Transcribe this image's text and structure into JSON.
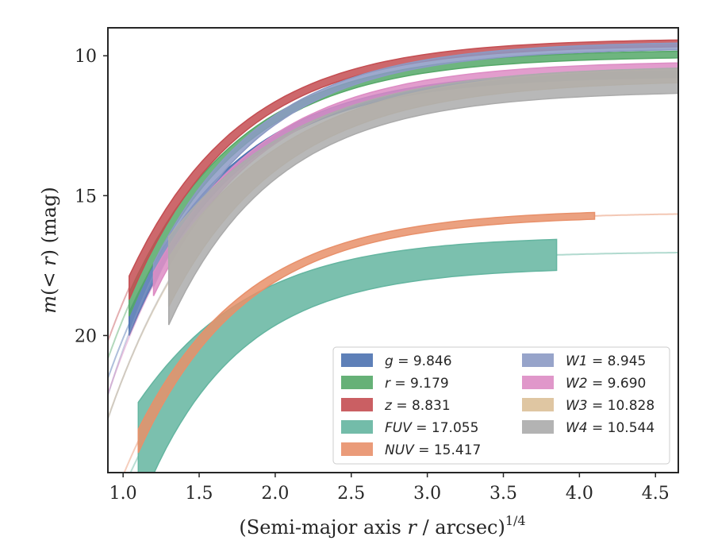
{
  "chart_data": {
    "type": "line",
    "title": "",
    "xlabel_parts": {
      "prefix": "(Semi-major axis ",
      "var": "r",
      "suffix": " / arcsec)",
      "sup": "1/4"
    },
    "ylabel_parts": {
      "var1": "m",
      "mid": "(< ",
      "var2": "r",
      "tail": ") (mag)"
    },
    "xlim": [
      0.9,
      4.65
    ],
    "ylim": [
      24.9,
      9.0
    ],
    "y_inverted": true,
    "x_ticks": [
      1.0,
      1.5,
      2.0,
      2.5,
      3.0,
      3.5,
      4.0,
      4.5
    ],
    "x_tick_labels": [
      "1.0",
      "1.5",
      "2.0",
      "2.5",
      "3.0",
      "3.5",
      "4.0",
      "4.5"
    ],
    "y_ticks": [
      10,
      15,
      20
    ],
    "y_tick_labels": [
      "10",
      "15",
      "20"
    ],
    "grid": false,
    "legend_position": "lower-right",
    "series": [
      {
        "name": "g",
        "value": "9.846",
        "color": "#4c72b0",
        "x0": 0.9,
        "xmid": 1.04,
        "x1": 4.65,
        "a": 20.1,
        "b": 10.6,
        "k": 1.4,
        "band": 0.12
      },
      {
        "name": "r",
        "value": "9.179",
        "color": "#55a868",
        "x0": 0.9,
        "xmid": 1.04,
        "x1": 4.65,
        "a": 19.4,
        "b": 9.9,
        "k": 1.4,
        "band": 0.12
      },
      {
        "name": "z",
        "value": "8.831",
        "color": "#c44e52",
        "x0": 0.9,
        "xmid": 1.04,
        "x1": 4.65,
        "a": 18.8,
        "b": 9.5,
        "k": 1.4,
        "band": 0.12
      },
      {
        "name": "FUV",
        "value": "17.055",
        "color": "#64b5a0",
        "x0": 0.9,
        "xmid": 1.1,
        "xsolid": 3.85,
        "x1": 4.65,
        "a": 25.5,
        "b": 17.0,
        "k": 1.5,
        "band": 0.55
      },
      {
        "name": "NUV",
        "value": "15.417",
        "color": "#e8906a",
        "x0": 0.9,
        "xmid": 1.1,
        "xsolid": 4.1,
        "x1": 4.65,
        "a": 25.0,
        "b": 15.6,
        "k": 1.4,
        "band": 0.12
      },
      {
        "name": "W1",
        "value": "8.945",
        "color": "#8c9ac4",
        "x0": 0.9,
        "xmid": 1.2,
        "x1": 4.65,
        "a": 20.5,
        "b": 9.6,
        "k": 1.4,
        "band": 0.12
      },
      {
        "name": "W2",
        "value": "9.690",
        "color": "#dd8cc4",
        "x0": 0.9,
        "xmid": 1.2,
        "x1": 4.65,
        "a": 20.6,
        "b": 10.3,
        "k": 1.35,
        "band": 0.12
      },
      {
        "name": "W3",
        "value": "10.828",
        "color": "#dcc098",
        "x0": 0.9,
        "xmid": 1.3,
        "x1": 4.65,
        "a": 21.5,
        "b": 10.6,
        "k": 1.25,
        "band": 0.25
      },
      {
        "name": "W4",
        "value": "10.544",
        "color": "#ababab",
        "x0": 0.9,
        "xmid": 1.3,
        "x1": 4.65,
        "a": 21.5,
        "b": 10.8,
        "k": 1.3,
        "band": 0.45
      }
    ]
  }
}
